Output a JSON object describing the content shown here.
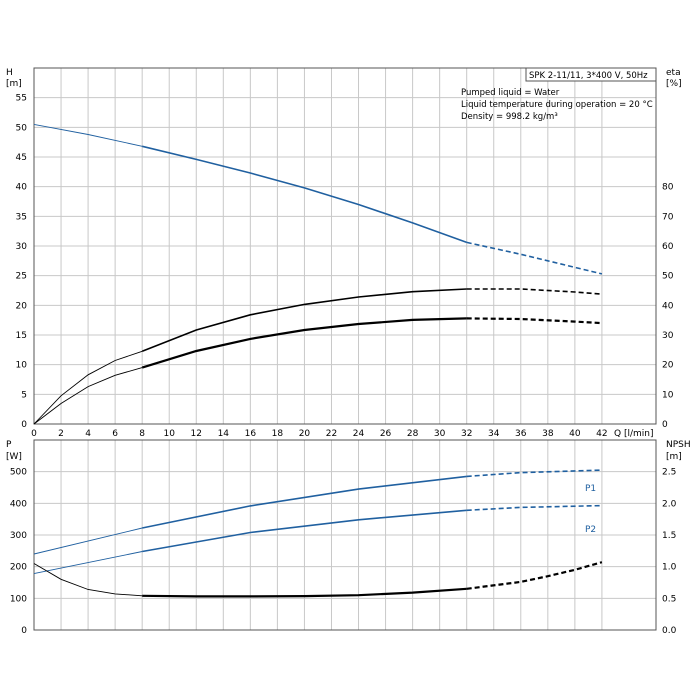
{
  "chart_data": [
    {
      "type": "line",
      "panel": "upper",
      "title_box": "SPK 2-11/11, 3*400 V, 50Hz",
      "notes": [
        "Pumped liquid = Water",
        "Liquid temperature during operation = 20 °C",
        "Density = 998.2 kg/m³"
      ],
      "xlabel": "Q [l/min]",
      "xlim": [
        0,
        46
      ],
      "xticks": [
        0,
        2,
        4,
        6,
        8,
        10,
        12,
        14,
        16,
        18,
        20,
        22,
        24,
        26,
        28,
        30,
        32,
        34,
        36,
        38,
        40,
        42
      ],
      "y_left": {
        "label_line1": "H",
        "label_line2": "[m]",
        "lim": [
          0,
          60
        ],
        "ticks": [
          0,
          5,
          10,
          15,
          20,
          25,
          30,
          35,
          40,
          45,
          50,
          55
        ]
      },
      "y_right": {
        "label_line1": "eta",
        "label_line2": "[%]",
        "lim": [
          0,
          120
        ],
        "ticks": [
          0,
          10,
          20,
          30,
          40,
          50,
          60,
          70,
          80
        ]
      },
      "grid": true,
      "series": [
        {
          "axis": "left",
          "color": "#2060a0",
          "x": [
            0,
            4,
            8,
            12,
            16,
            20,
            24,
            28,
            32,
            36,
            42
          ],
          "y": [
            50.5,
            48.8,
            46.8,
            44.6,
            42.3,
            39.8,
            37.0,
            33.9,
            30.6,
            28.6,
            25.3
          ],
          "solid_range": [
            8,
            32
          ]
        },
        {
          "axis": "right",
          "color": "#000000",
          "x": [
            0,
            2,
            4,
            6,
            8,
            12,
            16,
            20,
            24,
            28,
            32,
            36,
            40,
            42
          ],
          "y": [
            0,
            9.5,
            16.6,
            21.4,
            24.5,
            31.7,
            36.8,
            40.3,
            42.8,
            44.6,
            45.5,
            45.5,
            44.5,
            43.8
          ],
          "solid_range": [
            8,
            32
          ]
        },
        {
          "axis": "right",
          "color": "#000000",
          "x": [
            0,
            2,
            4,
            6,
            8,
            12,
            16,
            20,
            24,
            28,
            32,
            36,
            40,
            42
          ],
          "y": [
            0,
            6.9,
            12.6,
            16.4,
            19.0,
            24.6,
            28.7,
            31.7,
            33.7,
            35.1,
            35.6,
            35.4,
            34.5,
            34.0
          ],
          "solid_range": [
            8,
            32
          ],
          "bold": true
        }
      ]
    },
    {
      "type": "line",
      "panel": "lower",
      "xlim": [
        0,
        46
      ],
      "xticks": [
        0,
        2,
        4,
        6,
        8,
        10,
        12,
        14,
        16,
        18,
        20,
        22,
        24,
        26,
        28,
        30,
        32,
        34,
        36,
        38,
        40,
        42
      ],
      "y_left": {
        "label_line1": "P",
        "label_line2": "[W]",
        "lim": [
          0,
          600
        ],
        "ticks": [
          0,
          100,
          200,
          300,
          400,
          500
        ]
      },
      "y_right": {
        "label_line1": "NPSH",
        "label_line2": "[m]",
        "lim": [
          0,
          3
        ],
        "ticks": [
          "0.0",
          "0.5",
          "1.0",
          "1.5",
          "2.0",
          "2.5"
        ]
      },
      "grid": true,
      "series": [
        {
          "name": "P1",
          "axis": "left",
          "color": "#2060a0",
          "x": [
            0,
            8,
            16,
            24,
            32,
            36,
            42
          ],
          "y": [
            240,
            322,
            392,
            445,
            485,
            497,
            505
          ],
          "solid_range": [
            8,
            32
          ]
        },
        {
          "name": "P2",
          "axis": "left",
          "color": "#2060a0",
          "x": [
            0,
            8,
            16,
            24,
            32,
            36,
            42
          ],
          "y": [
            178,
            248,
            308,
            348,
            378,
            387,
            393
          ],
          "solid_range": [
            8,
            32
          ]
        },
        {
          "axis": "right",
          "color": "#000000",
          "x": [
            0,
            2,
            4,
            6,
            8,
            12,
            16,
            20,
            24,
            28,
            32,
            36,
            38,
            40,
            42
          ],
          "y": [
            1.05,
            0.8,
            0.64,
            0.57,
            0.54,
            0.53,
            0.53,
            0.535,
            0.55,
            0.59,
            0.65,
            0.76,
            0.85,
            0.95,
            1.07
          ],
          "solid_range": [
            8,
            32
          ],
          "bold": true
        }
      ]
    }
  ]
}
